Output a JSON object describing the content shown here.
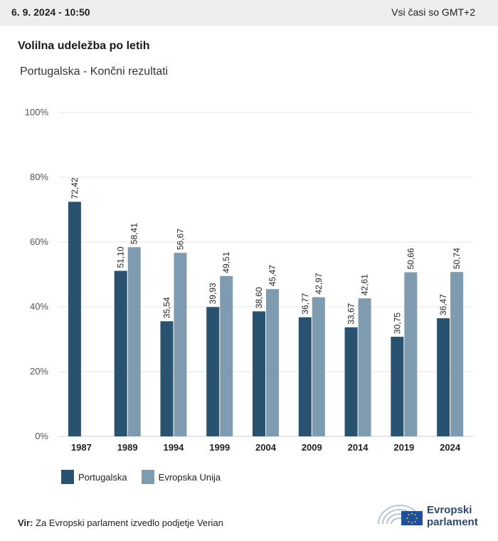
{
  "header": {
    "date": "6. 9. 2024 - 10:50",
    "timezone": "Vsi časi so GMT+2"
  },
  "title": "Volilna udeležba po letih",
  "subtitle": "Portugalska - Končni rezultati",
  "colors": {
    "portugal": "#28526f",
    "eu": "#7f9bb0",
    "grid": "#e6e6e6"
  },
  "chart_data": {
    "type": "bar",
    "categories": [
      "1987",
      "1989",
      "1994",
      "1999",
      "2004",
      "2009",
      "2014",
      "2019",
      "2024"
    ],
    "series": [
      {
        "name": "Portugalska",
        "values": [
          72.42,
          51.1,
          35.54,
          39.93,
          38.6,
          36.77,
          33.67,
          30.75,
          36.47
        ],
        "labels": [
          "72,42",
          "51,10",
          "35,54",
          "39,93",
          "38,60",
          "36,77",
          "33,67",
          "30,75",
          "36,47"
        ]
      },
      {
        "name": "Evropska Unija",
        "values": [
          null,
          58.41,
          56.67,
          49.51,
          45.47,
          42.97,
          42.61,
          50.66,
          50.74
        ],
        "labels": [
          "",
          "58,41",
          "56,67",
          "49,51",
          "45,47",
          "42,97",
          "42,61",
          "50,66",
          "50,74"
        ]
      }
    ],
    "ylim": [
      0,
      100
    ],
    "yticks": [
      "0%",
      "20%",
      "40%",
      "60%",
      "80%",
      "100%"
    ],
    "grid": true,
    "legend_position": "bottom-left"
  },
  "legend": [
    {
      "label": "Portugalska"
    },
    {
      "label": "Evropska Unija"
    }
  ],
  "source": {
    "prefix": "Vir:",
    "text": "Za Evropski parlament izvedlo podjetje Verian"
  },
  "logo": {
    "line1": "Evropski",
    "line2": "parlament"
  }
}
